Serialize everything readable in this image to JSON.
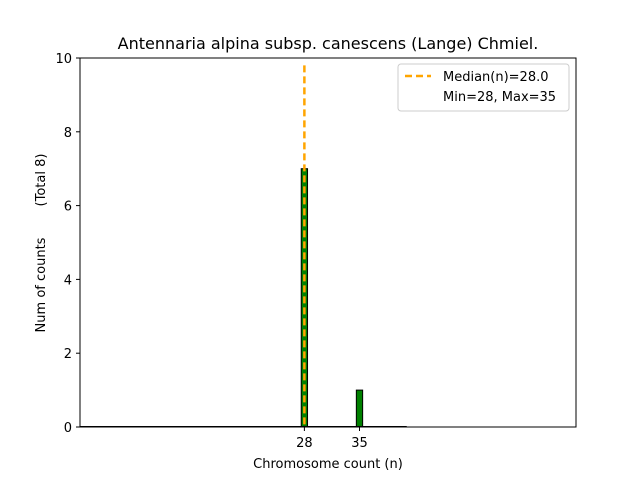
{
  "chart_data": {
    "type": "bar",
    "title": "Antennaria alpina subsp. canescens (Lange) Chmiel.",
    "xlabel": "Chromosome count (n)",
    "ylabel": "Num of counts",
    "ylabel_note": "(Total 8)",
    "xlim": [
      -0.5,
      62.5
    ],
    "ylim": [
      0,
      10
    ],
    "x_ticks": [
      28,
      35
    ],
    "x_tick_labels": [
      "28",
      "35"
    ],
    "y_ticks": [
      0,
      2,
      4,
      6,
      8,
      10
    ],
    "y_tick_labels": [
      "0",
      "2",
      "4",
      "6",
      "8",
      "10"
    ],
    "bars": [
      {
        "x": 28,
        "value": 7
      },
      {
        "x": 35,
        "value": 1
      }
    ],
    "bar_color": "#008000",
    "bar_edge_color": "#000000",
    "median": {
      "value": 28.0,
      "color": "#ffa500",
      "style": "dashed"
    },
    "legend": {
      "position": "top-right",
      "entries": [
        "Median(n)=28.0",
        "Min=28, Max=35"
      ]
    },
    "grid": false
  }
}
